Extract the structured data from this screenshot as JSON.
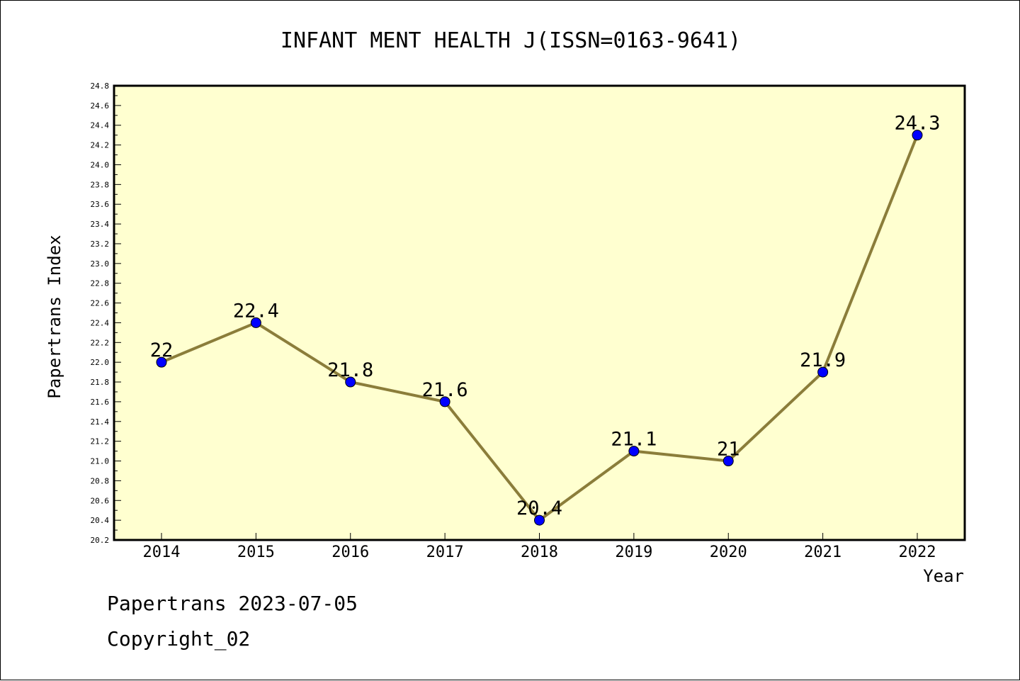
{
  "chart_data": {
    "type": "line",
    "title": "INFANT MENT HEALTH J(ISSN=0163-9641)",
    "xlabel": "Year",
    "ylabel": "Papertrans Index",
    "categories": [
      "2014",
      "2015",
      "2016",
      "2017",
      "2018",
      "2019",
      "2020",
      "2021",
      "2022"
    ],
    "series": [
      {
        "values": [
          22,
          22.4,
          21.8,
          21.6,
          20.4,
          21.1,
          21,
          21.9,
          24.3
        ],
        "data_labels": [
          "22",
          "22.4",
          "21.8",
          "21.6",
          "20.4",
          "21.1",
          "21",
          "21.9",
          "24.3"
        ]
      }
    ],
    "ylim": [
      20.2,
      24.8
    ],
    "yticks": [
      "20.2",
      "20.4",
      "20.6",
      "20.8",
      "21.0",
      "21.2",
      "21.4",
      "21.6",
      "21.8",
      "22.0",
      "22.2",
      "22.4",
      "22.6",
      "22.8",
      "23.0",
      "23.2",
      "23.4",
      "23.6",
      "23.8",
      "24.0",
      "24.2",
      "24.4",
      "24.6",
      "24.8"
    ],
    "grid": false,
    "colors": {
      "plot_background": "#ffffd0",
      "line": "#8b7d3a",
      "marker": "#0000ff"
    }
  },
  "footer": {
    "date_line": "Papertrans 2023-07-05",
    "copyright": "Copyright_02"
  }
}
